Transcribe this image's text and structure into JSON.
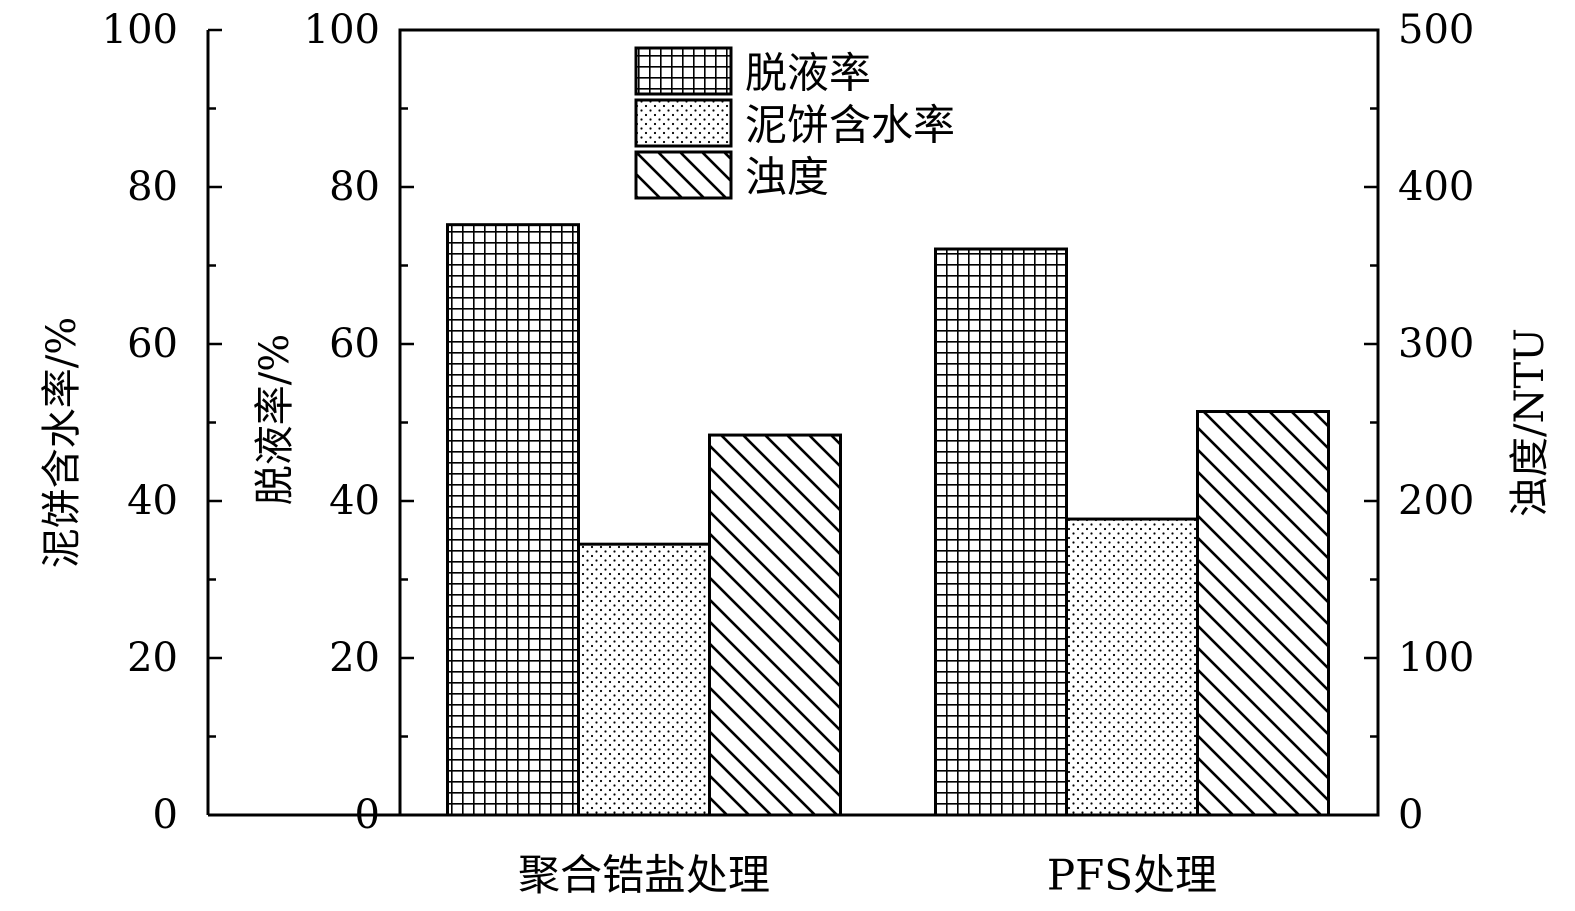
{
  "chart_data": {
    "type": "bar",
    "categories": [
      "聚合锆盐处理",
      "PFS处理"
    ],
    "series": [
      {
        "name": "脱液率",
        "axis": "middle",
        "values": [
          75.2,
          72.1
        ],
        "pattern": "grid"
      },
      {
        "name": "泥饼含水率",
        "axis": "left",
        "values": [
          34.5,
          37.7
        ],
        "pattern": "dots"
      },
      {
        "name": "浊度",
        "axis": "right",
        "values": [
          242,
          257
        ],
        "pattern": "hatch"
      }
    ],
    "axes": {
      "left": {
        "label": "泥饼含水率/%",
        "ylim": [
          0,
          100
        ],
        "ticks": [
          0,
          20,
          40,
          60,
          80,
          100
        ]
      },
      "middle": {
        "label": "脱液率/%",
        "ylim": [
          0,
          100
        ],
        "ticks": [
          0,
          20,
          40,
          60,
          80,
          100
        ]
      },
      "right": {
        "label": "浊度/NTU",
        "ylim": [
          0,
          500
        ],
        "ticks": [
          0,
          100,
          200,
          300,
          400,
          500
        ]
      }
    },
    "legend": {
      "position": "top-center",
      "entries": [
        "脱液率",
        "泥饼含水率",
        "浊度"
      ]
    },
    "grid": false
  }
}
